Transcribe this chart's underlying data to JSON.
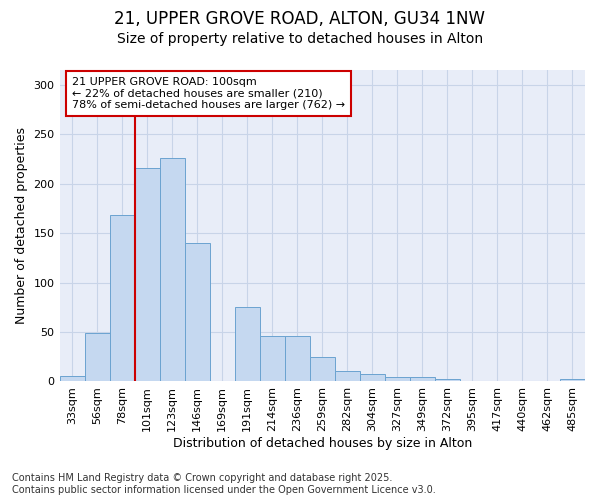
{
  "title1": "21, UPPER GROVE ROAD, ALTON, GU34 1NW",
  "title2": "Size of property relative to detached houses in Alton",
  "xlabel": "Distribution of detached houses by size in Alton",
  "ylabel": "Number of detached properties",
  "categories": [
    "33sqm",
    "56sqm",
    "78sqm",
    "101sqm",
    "123sqm",
    "146sqm",
    "169sqm",
    "191sqm",
    "214sqm",
    "236sqm",
    "259sqm",
    "282sqm",
    "304sqm",
    "327sqm",
    "349sqm",
    "372sqm",
    "395sqm",
    "417sqm",
    "440sqm",
    "462sqm",
    "485sqm"
  ],
  "values": [
    6,
    49,
    168,
    216,
    226,
    140,
    0,
    75,
    46,
    46,
    25,
    11,
    8,
    5,
    5,
    2,
    0,
    0,
    0,
    0,
    2
  ],
  "bar_color": "#c5d8f0",
  "bar_edge_color": "#6ba3d0",
  "vline_color": "#cc0000",
  "annotation_text": "21 UPPER GROVE ROAD: 100sqm\n← 22% of detached houses are smaller (210)\n78% of semi-detached houses are larger (762) →",
  "annotation_box_color": "white",
  "annotation_box_edge_color": "#cc0000",
  "ylim": [
    0,
    315
  ],
  "yticks": [
    0,
    50,
    100,
    150,
    200,
    250,
    300
  ],
  "grid_color": "#c8d4e8",
  "bg_color": "#e8edf8",
  "footer1": "Contains HM Land Registry data © Crown copyright and database right 2025.",
  "footer2": "Contains public sector information licensed under the Open Government Licence v3.0.",
  "title1_fontsize": 12,
  "title2_fontsize": 10,
  "axis_label_fontsize": 9,
  "tick_fontsize": 8,
  "annotation_fontsize": 8,
  "footer_fontsize": 7
}
